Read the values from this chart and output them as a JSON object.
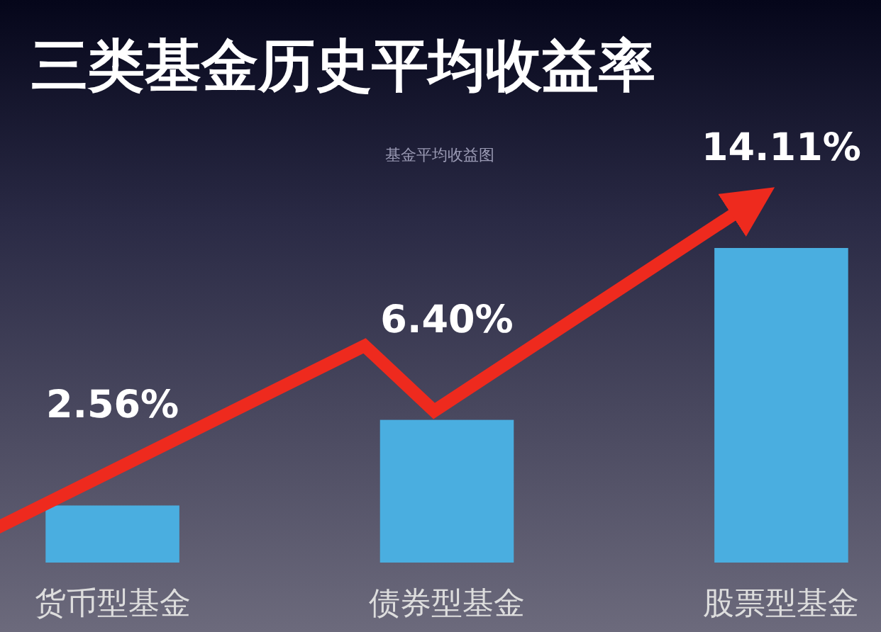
{
  "chart_data": {
    "type": "bar",
    "title": "三类基金历史平均收益率",
    "subtitle": "基金平均收益图",
    "categories": [
      "货币型基金",
      "债券型基金",
      "股票型基金"
    ],
    "values": [
      2.56,
      6.4,
      14.11
    ],
    "value_labels": [
      "2.56%",
      "6.40%",
      "14.11%"
    ],
    "color": "#4aaee0"
  }
}
